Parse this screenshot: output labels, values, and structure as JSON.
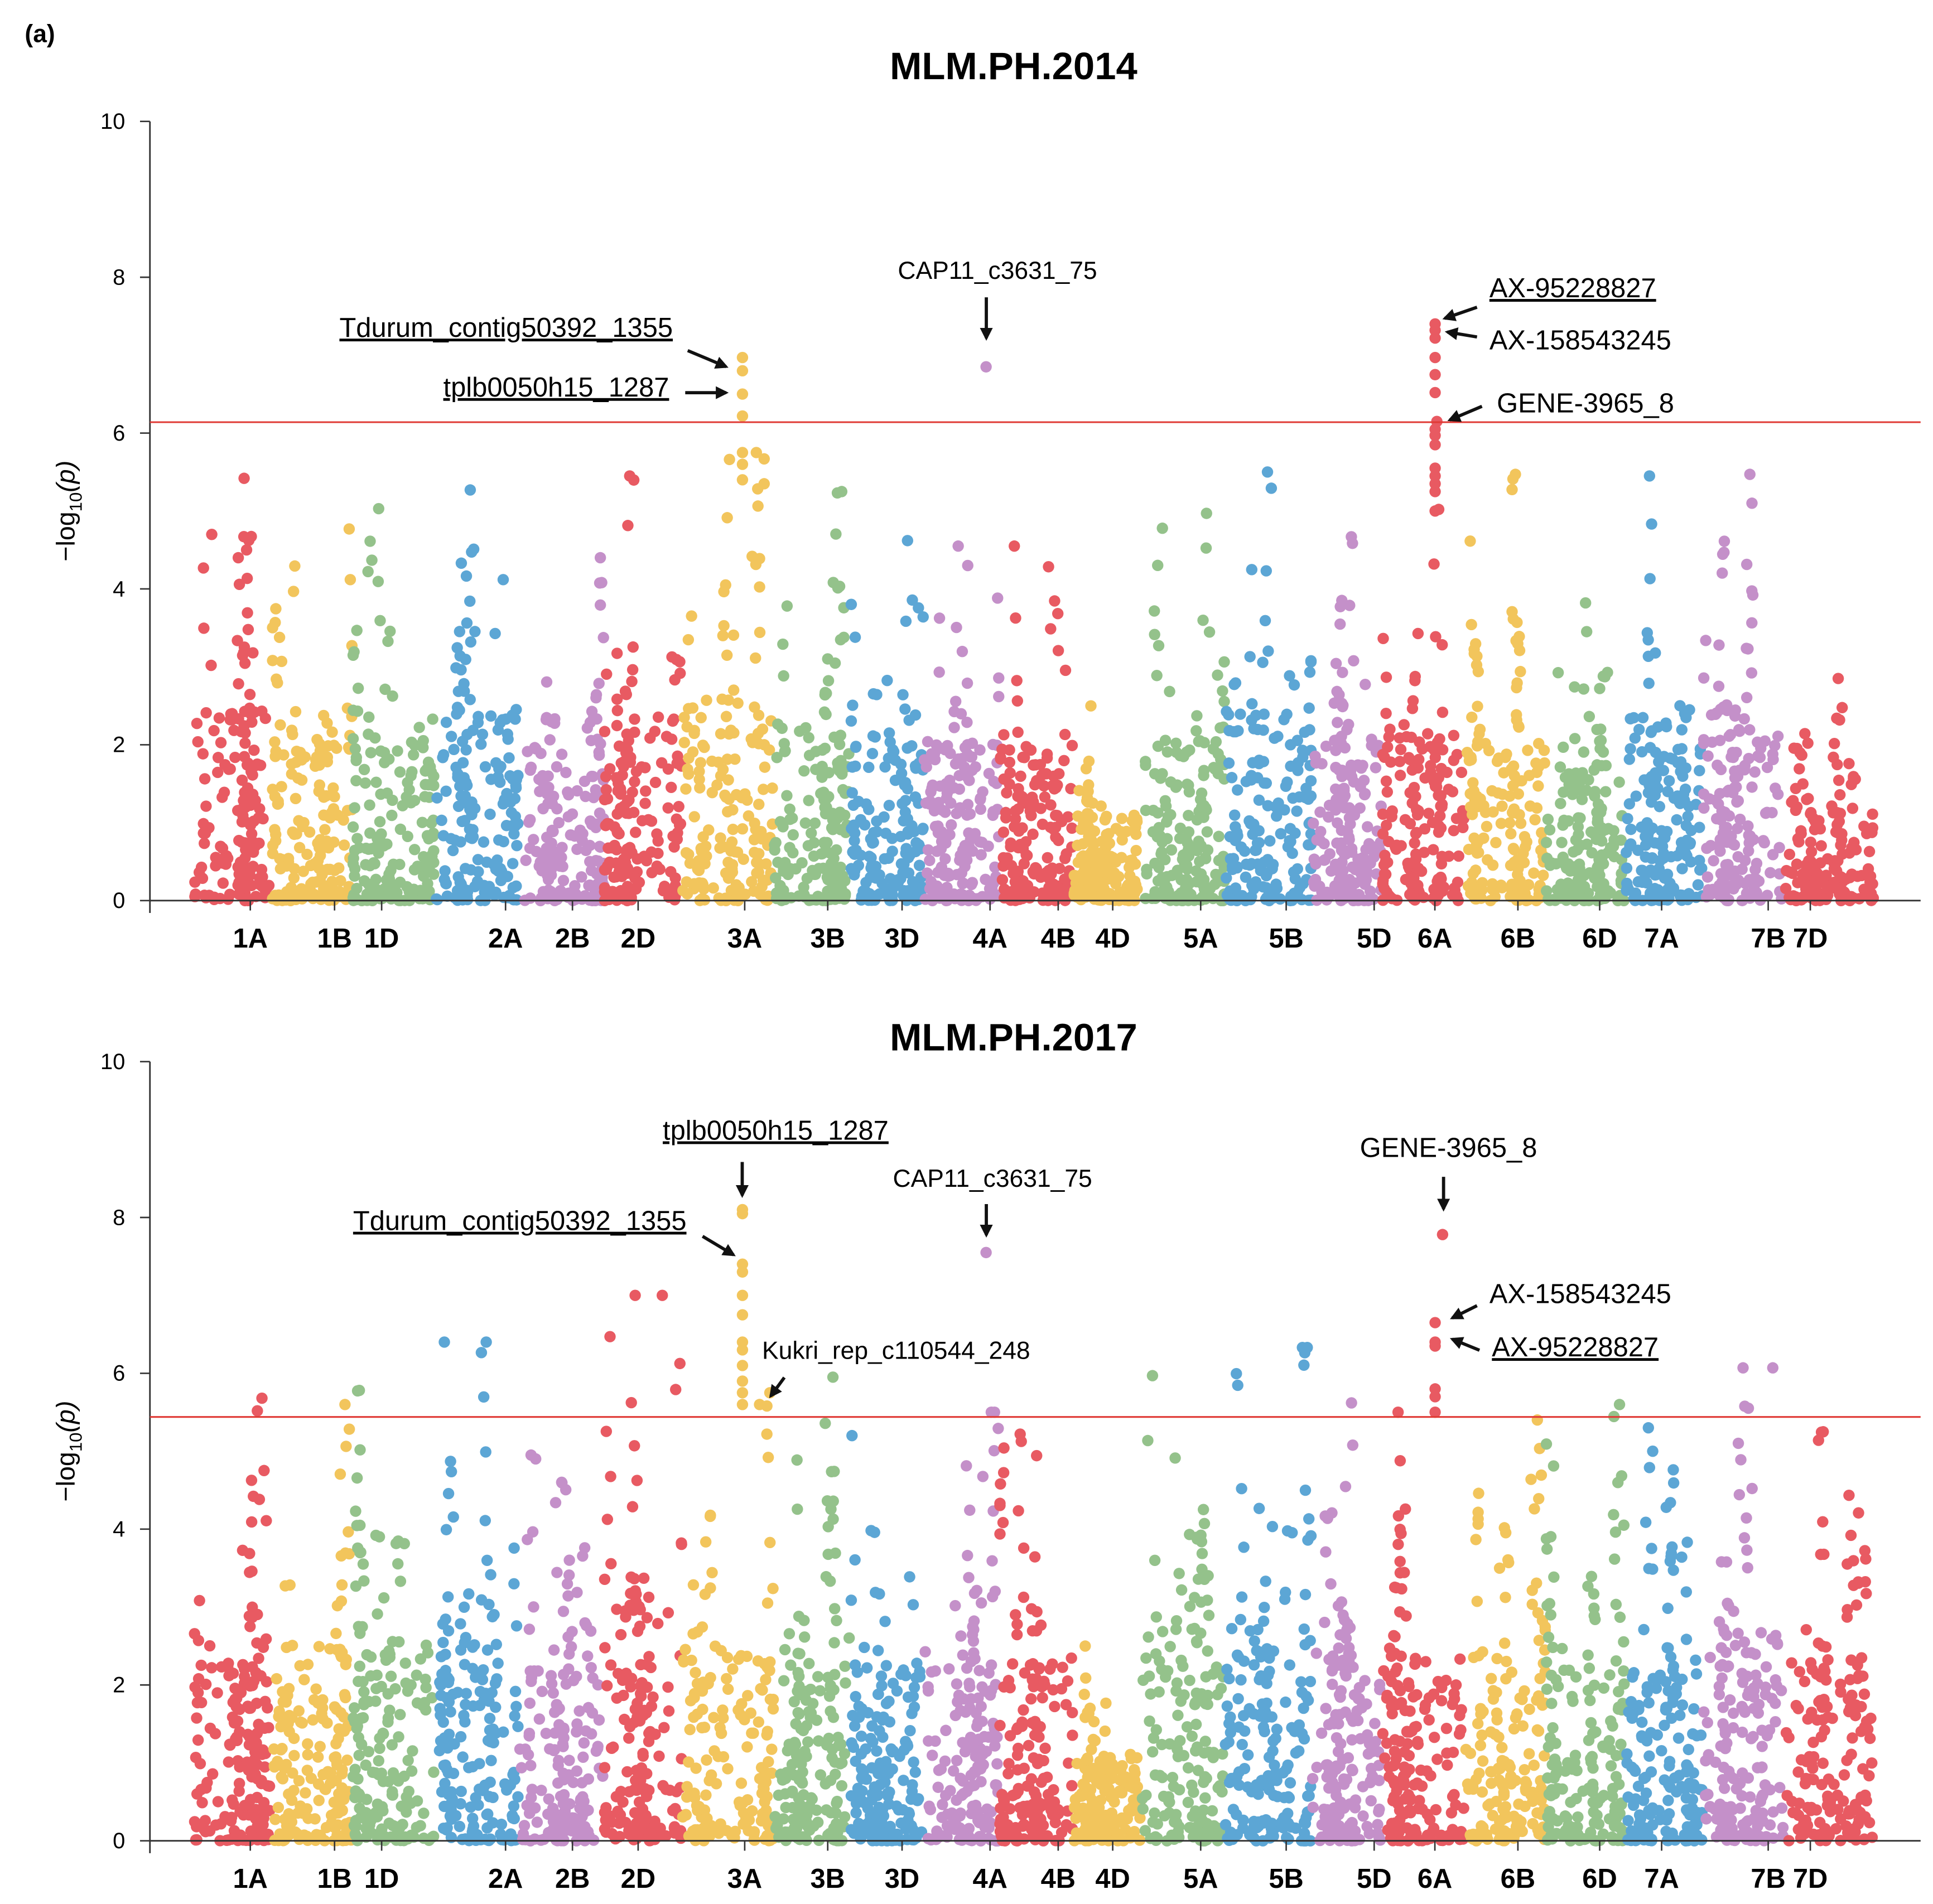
{
  "panel_label": "(a)",
  "chart_data": [
    {
      "type": "scatter",
      "subtype": "manhattan",
      "title": "MLM.PH.2014",
      "ylabel": "−log10(p)",
      "ylabel_parts": {
        "pre": "−log",
        "sub": "10",
        "post": "(p)"
      },
      "ylim": [
        0,
        10
      ],
      "yticks": [
        "0",
        "2",
        "4",
        "6",
        "8",
        "10"
      ],
      "threshold": 6.14,
      "chromosomes": [
        "1A",
        "1B",
        "1D",
        "2A",
        "2B",
        "2D",
        "3A",
        "3B",
        "3D",
        "4A",
        "4B",
        "4D",
        "5A",
        "5B",
        "5D",
        "6A",
        "6B",
        "6D",
        "7A",
        "7B",
        "7D"
      ],
      "colors": [
        "#e85a62",
        "#f2c55c",
        "#94c28b",
        "#5ca6d5",
        "#c490c9"
      ],
      "threshold_color": "#e03a35",
      "background_max": [
        5.42,
        4.77,
        5.03,
        5.27,
        4.4,
        5.45,
        5.75,
        5.25,
        4.62,
        4.55,
        4.55,
        2.5,
        4.97,
        5.5,
        4.67,
        5.02,
        5.47,
        3.82,
        5.45,
        5.47,
        2.85
      ],
      "highlights": {
        "3A": [
          [
            0.66,
            6.97
          ],
          [
            0.66,
            6.8
          ],
          [
            0.66,
            6.5
          ],
          [
            0.66,
            6.22
          ],
          [
            0.66,
            5.75
          ],
          [
            0.66,
            5.6
          ],
          [
            0.66,
            5.4
          ],
          [
            0.9,
            5.67
          ],
          [
            0.9,
            5.35
          ]
        ],
        "4A": [
          [
            0.83,
            6.85
          ]
        ],
        "6A": [
          [
            0.64,
            7.4
          ],
          [
            0.64,
            7.32
          ],
          [
            0.64,
            7.22
          ],
          [
            0.64,
            6.97
          ],
          [
            0.64,
            6.75
          ],
          [
            0.64,
            6.52
          ],
          [
            0.66,
            6.15
          ],
          [
            0.64,
            6.05
          ],
          [
            0.64,
            5.97
          ],
          [
            0.64,
            5.85
          ],
          [
            0.64,
            5.55
          ],
          [
            0.64,
            5.45
          ],
          [
            0.64,
            5.35
          ],
          [
            0.64,
            5.25
          ],
          [
            0.64,
            5.0
          ]
        ]
      },
      "annotations": [
        {
          "label": "Tdurum_contig50392_1355",
          "underline": true,
          "chromosome": "3A",
          "value": 6.85
        },
        {
          "label": "tplb0050h15_1287",
          "underline": true,
          "chromosome": "3A",
          "value": 6.5
        },
        {
          "label": "CAP11_c3631_75",
          "underline": false,
          "chromosome": "4A",
          "value": 6.85
        },
        {
          "label": "AX-95228827",
          "underline": true,
          "chromosome": "6A",
          "value": 7.4
        },
        {
          "label": "AX-158543245",
          "underline": false,
          "chromosome": "6A",
          "value": 7.25
        },
        {
          "label": "GENE-3965_8",
          "underline": false,
          "chromosome": "6A",
          "value": 6.15
        }
      ]
    },
    {
      "type": "scatter",
      "subtype": "manhattan",
      "title": "MLM.PH.2017",
      "ylabel": "−log10(p)",
      "ylabel_parts": {
        "pre": "−log",
        "sub": "10",
        "post": "(p)"
      },
      "ylim": [
        0,
        10
      ],
      "yticks": [
        "0",
        "2",
        "4",
        "6",
        "8",
        "10"
      ],
      "threshold": 5.44,
      "chromosomes": [
        "1A",
        "1B",
        "1D",
        "2A",
        "2B",
        "2D",
        "3A",
        "3B",
        "3D",
        "4A",
        "4B",
        "4D",
        "5A",
        "5B",
        "5D",
        "6A",
        "6B",
        "6D",
        "7A",
        "7B",
        "7D"
      ],
      "colors": [
        "#e85a62",
        "#f2c55c",
        "#94c28b",
        "#5ca6d5",
        "#c490c9"
      ],
      "threshold_color": "#e03a35",
      "background_max": [
        5.68,
        5.6,
        5.78,
        6.4,
        4.95,
        7.0,
        5.75,
        5.95,
        5.2,
        5.5,
        5.22,
        2.5,
        5.97,
        6.33,
        5.62,
        5.5,
        5.4,
        5.6,
        5.3,
        6.07,
        5.25
      ],
      "highlights": {
        "2D": [
          [
            0.75,
            7.0
          ],
          [
            0.07,
            6.47
          ]
        ],
        "2A": [
          [
            0.1,
            6.4
          ]
        ],
        "3A": [
          [
            0.66,
            8.1
          ],
          [
            0.66,
            8.05
          ],
          [
            0.66,
            7.4
          ],
          [
            0.66,
            7.3
          ],
          [
            0.66,
            7.0
          ],
          [
            0.66,
            6.75
          ],
          [
            0.66,
            6.4
          ],
          [
            0.66,
            6.3
          ],
          [
            0.66,
            6.1
          ],
          [
            0.66,
            5.9
          ],
          [
            0.66,
            5.75
          ],
          [
            0.66,
            5.6
          ],
          [
            0.93,
            5.58
          ],
          [
            0.85,
            5.6
          ],
          [
            0.93,
            5.22
          ]
        ],
        "4A": [
          [
            0.83,
            7.55
          ],
          [
            0.9,
            5.5
          ]
        ],
        "6A": [
          [
            0.73,
            7.78
          ],
          [
            0.64,
            6.65
          ],
          [
            0.64,
            6.4
          ],
          [
            0.64,
            6.35
          ],
          [
            0.64,
            5.8
          ],
          [
            0.64,
            5.7
          ],
          [
            0.64,
            5.5
          ]
        ],
        "5B": [
          [
            0.9,
            6.33
          ]
        ],
        "7B": [
          [
            0.87,
            6.07
          ]
        ]
      },
      "annotations": [
        {
          "label": "tplb0050h15_1287",
          "underline": true,
          "chromosome": "3A",
          "value": 8.1
        },
        {
          "label": "Tdurum_contig50392_1355",
          "underline": true,
          "chromosome": "3A",
          "value": 7.4
        },
        {
          "label": "CAP11_c3631_75",
          "underline": false,
          "chromosome": "4A",
          "value": 7.55
        },
        {
          "label": "Kukri_rep_c110544_248",
          "underline": false,
          "chromosome": "3A",
          "value": 5.58
        },
        {
          "label": "GENE-3965_8",
          "underline": false,
          "chromosome": "6A",
          "value": 7.78
        },
        {
          "label": "AX-158543245",
          "underline": false,
          "chromosome": "6A",
          "value": 6.65
        },
        {
          "label": "AX-95228827",
          "underline": true,
          "chromosome": "6A",
          "value": 6.4
        }
      ]
    }
  ]
}
